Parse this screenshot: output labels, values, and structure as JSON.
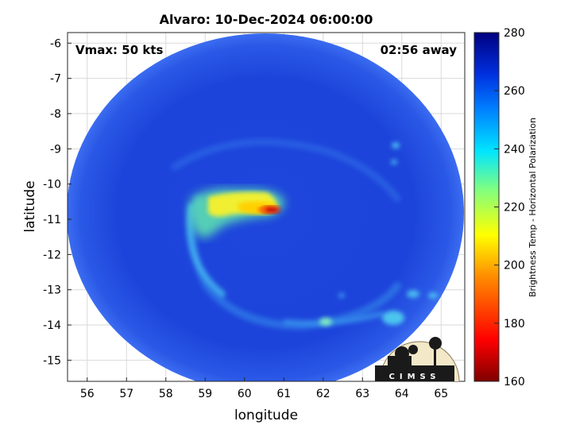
{
  "title": "Alvaro: 10-Dec-2024 06:00:00",
  "vmax_label": "Vmax: 50 kts",
  "time_away_label": "02:56 away",
  "xlabel": "longitude",
  "ylabel": "latitude",
  "colorbar_label": "Brightness Temp - Horizontal Polarization",
  "logo_text": "CIMSS",
  "x_ticks": [
    "56",
    "57",
    "58",
    "59",
    "60",
    "61",
    "62",
    "63",
    "64",
    "65"
  ],
  "y_ticks": [
    "-6",
    "-7",
    "-8",
    "-9",
    "-10",
    "-11",
    "-12",
    "-13",
    "-14",
    "-15"
  ],
  "colorbar_ticks": [
    "280",
    "260",
    "240",
    "220",
    "200",
    "180",
    "160"
  ],
  "colors": {
    "background_cold": "#1a3fd8",
    "swath_edge": "#3b6cf0",
    "ring": "#34a3f0",
    "convection_warm": "#f4e51a",
    "core": "#d21010"
  },
  "chart_data": {
    "type": "heatmap",
    "title": "Alvaro: 10-Dec-2024 06:00:00",
    "xlabel": "longitude",
    "ylabel": "latitude",
    "xlim": [
      55.5,
      65.6
    ],
    "ylim": [
      -15.6,
      -5.7
    ],
    "colorbar": {
      "label": "Brightness Temp - Horizontal Polarization",
      "range": [
        160,
        280
      ],
      "ticks": [
        160,
        180,
        200,
        220,
        240,
        260,
        280
      ]
    },
    "grid": true,
    "annotations": [
      "Vmax: 50 kts",
      "02:56 away"
    ],
    "swath_center": {
      "lon": 60.5,
      "lat": -10.65
    }
  }
}
